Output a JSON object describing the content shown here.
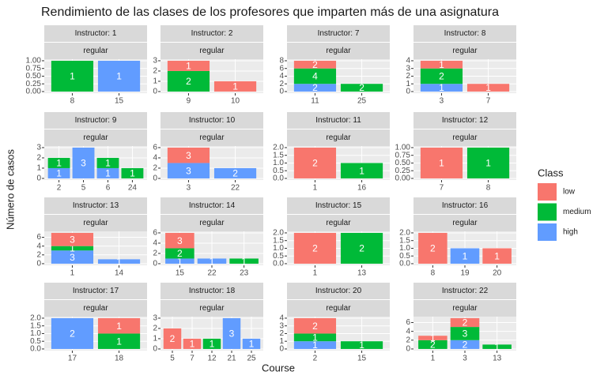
{
  "chart_data": {
    "type": "bar",
    "stacked": true,
    "title": "Rendimiento de las clases de los profesores que imparten más de una asignatura",
    "xlabel": "Course",
    "ylabel": "Número de casos",
    "legend_title": "Class",
    "series": [
      {
        "name": "low",
        "color": "#F8766D"
      },
      {
        "name": "medium",
        "color": "#00BA38"
      },
      {
        "name": "high",
        "color": "#619CFF"
      }
    ],
    "facets": [
      {
        "strip": "Instructor:  1",
        "strip2": "regular",
        "categories": [
          "8",
          "15"
        ],
        "values": [
          [
            null,
            null
          ],
          [
            1,
            null
          ],
          [
            null,
            1
          ]
        ],
        "ylim": [
          0,
          1.05
        ],
        "yticks": [
          {
            "value": 0,
            "label": "0.00"
          },
          {
            "value": 0.25,
            "label": "0.25"
          },
          {
            "value": 0.5,
            "label": "0.50"
          },
          {
            "value": 0.75,
            "label": "0.75"
          },
          {
            "value": 1,
            "label": "1.00"
          }
        ]
      },
      {
        "strip": "Instructor:  2",
        "strip2": "regular",
        "categories": [
          "9",
          "10"
        ],
        "values": [
          [
            1,
            1
          ],
          [
            2,
            null
          ],
          [
            null,
            null
          ]
        ],
        "ylim": [
          0,
          3.15
        ],
        "yticks": [
          0,
          1,
          2,
          3
        ]
      },
      {
        "strip": "Instructor:  7",
        "strip2": "regular",
        "categories": [
          "11",
          "25"
        ],
        "values": [
          [
            2,
            null
          ],
          [
            4,
            2
          ],
          [
            2,
            null
          ]
        ],
        "ylim": [
          0,
          8.4
        ],
        "yticks": [
          0,
          2,
          4,
          6,
          8
        ]
      },
      {
        "strip": "Instructor:  8",
        "strip2": "regular",
        "categories": [
          "3",
          "7"
        ],
        "values": [
          [
            1,
            1
          ],
          [
            2,
            null
          ],
          [
            1,
            null
          ]
        ],
        "ylim": [
          0,
          4.2
        ],
        "yticks": [
          0,
          1,
          2,
          3,
          4
        ]
      },
      {
        "strip": "Instructor:  9",
        "strip2": "regular",
        "categories": [
          "2",
          "5",
          "6",
          "24"
        ],
        "values": [
          [
            null,
            null,
            null,
            null
          ],
          [
            1,
            null,
            1,
            1
          ],
          [
            1,
            3,
            1,
            null
          ]
        ],
        "ylim": [
          0,
          3.15
        ],
        "yticks": [
          0,
          1,
          2,
          3
        ]
      },
      {
        "strip": "Instructor:  10",
        "strip2": "regular",
        "categories": [
          "3",
          "22"
        ],
        "values": [
          [
            3,
            null
          ],
          [
            null,
            null
          ],
          [
            3,
            2
          ]
        ],
        "ylim": [
          0,
          6.3
        ],
        "yticks": [
          0,
          2,
          4,
          6
        ]
      },
      {
        "strip": "Instructor:  11",
        "strip2": "regular",
        "categories": [
          "1",
          "16"
        ],
        "values": [
          [
            2,
            null
          ],
          [
            null,
            1
          ],
          [
            null,
            null
          ]
        ],
        "ylim": [
          0,
          2.1
        ],
        "yticks": [
          {
            "value": 0,
            "label": "0.0"
          },
          {
            "value": 0.5,
            "label": "0.5"
          },
          {
            "value": 1,
            "label": "1.0"
          },
          {
            "value": 1.5,
            "label": "1.5"
          },
          {
            "value": 2,
            "label": "2.0"
          }
        ]
      },
      {
        "strip": "Instructor:  12",
        "strip2": "regular",
        "categories": [
          "7",
          "8"
        ],
        "values": [
          [
            1,
            null
          ],
          [
            null,
            1
          ],
          [
            null,
            null
          ]
        ],
        "ylim": [
          0,
          1.05
        ],
        "yticks": [
          {
            "value": 0,
            "label": "0.00"
          },
          {
            "value": 0.25,
            "label": "0.25"
          },
          {
            "value": 0.5,
            "label": "0.50"
          },
          {
            "value": 0.75,
            "label": "0.75"
          },
          {
            "value": 1,
            "label": "1.00"
          }
        ]
      },
      {
        "strip": "Instructor:  13",
        "strip2": "regular",
        "categories": [
          "1",
          "14"
        ],
        "values": [
          [
            3,
            null
          ],
          [
            1,
            null
          ],
          [
            3,
            1
          ]
        ],
        "ylim": [
          0,
          7.35
        ],
        "yticks": [
          0,
          2,
          4,
          6
        ]
      },
      {
        "strip": "Instructor:  14",
        "strip2": "regular",
        "categories": [
          "15",
          "22",
          "23"
        ],
        "values": [
          [
            3,
            null,
            null
          ],
          [
            2,
            null,
            1
          ],
          [
            1,
            1,
            null
          ]
        ],
        "ylim": [
          0,
          6.3
        ],
        "yticks": [
          0,
          2,
          4,
          6
        ]
      },
      {
        "strip": "Instructor:  15",
        "strip2": "regular",
        "categories": [
          "1",
          "13"
        ],
        "values": [
          [
            2,
            null
          ],
          [
            null,
            2
          ],
          [
            null,
            null
          ]
        ],
        "ylim": [
          0,
          2.1
        ],
        "yticks": [
          {
            "value": 0,
            "label": "0.0"
          },
          {
            "value": 0.5,
            "label": "0.5"
          },
          {
            "value": 1,
            "label": "1.0"
          },
          {
            "value": 1.5,
            "label": "1.5"
          },
          {
            "value": 2,
            "label": "2.0"
          }
        ]
      },
      {
        "strip": "Instructor:  16",
        "strip2": "regular",
        "categories": [
          "8",
          "19",
          "20"
        ],
        "values": [
          [
            2,
            null,
            1
          ],
          [
            null,
            null,
            null
          ],
          [
            null,
            1,
            null
          ]
        ],
        "ylim": [
          0,
          2.1
        ],
        "yticks": [
          {
            "value": 0,
            "label": "0.0"
          },
          {
            "value": 0.5,
            "label": "0.5"
          },
          {
            "value": 1,
            "label": "1.0"
          },
          {
            "value": 1.5,
            "label": "1.5"
          },
          {
            "value": 2,
            "label": "2.0"
          }
        ]
      },
      {
        "strip": "Instructor:  17",
        "strip2": "regular",
        "categories": [
          "17",
          "18"
        ],
        "values": [
          [
            null,
            1
          ],
          [
            null,
            1
          ],
          [
            2,
            null
          ]
        ],
        "ylim": [
          0,
          2.1
        ],
        "yticks": [
          {
            "value": 0,
            "label": "0.0"
          },
          {
            "value": 0.5,
            "label": "0.5"
          },
          {
            "value": 1,
            "label": "1.0"
          },
          {
            "value": 1.5,
            "label": "1.5"
          },
          {
            "value": 2,
            "label": "2.0"
          }
        ]
      },
      {
        "strip": "Instructor:  18",
        "strip2": "regular",
        "categories": [
          "5",
          "7",
          "12",
          "21",
          "25"
        ],
        "values": [
          [
            2,
            1,
            null,
            null,
            null
          ],
          [
            null,
            null,
            1,
            null,
            null
          ],
          [
            null,
            null,
            null,
            3,
            1
          ]
        ],
        "ylim": [
          0,
          3.15
        ],
        "yticks": [
          0,
          1,
          2,
          3
        ]
      },
      {
        "strip": "Instructor:  20",
        "strip2": "regular",
        "categories": [
          "2",
          "15"
        ],
        "values": [
          [
            2,
            null
          ],
          [
            1,
            1
          ],
          [
            1,
            null
          ]
        ],
        "ylim": [
          0,
          4.2
        ],
        "yticks": [
          0,
          1,
          2,
          3,
          4
        ]
      },
      {
        "strip": "Instructor:  22",
        "strip2": "regular",
        "categories": [
          "1",
          "3",
          "13"
        ],
        "values": [
          [
            1,
            2,
            null
          ],
          [
            2,
            3,
            1
          ],
          [
            null,
            2,
            null
          ]
        ],
        "ylim": [
          0,
          7.35
        ],
        "yticks": [
          0,
          2,
          4,
          6
        ]
      }
    ]
  }
}
